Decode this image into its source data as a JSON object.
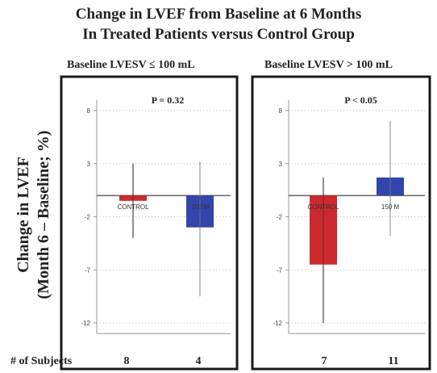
{
  "title_line1": "Change in LVEF from Baseline at 6 Months",
  "title_line2": "In Treated Patients versus Control Group",
  "y_title_line1": "Change in LVEF",
  "y_title_line2": "(Month 6 – Baseline; %)",
  "subjects_label": "# of Subjects",
  "colors": {
    "control": "#cc2a30",
    "treated": "#3344aa",
    "frame": "#1a1a1a",
    "errorbar": "#222222"
  },
  "chart_data": [
    {
      "type": "bar",
      "title": "Baseline LVESV ≤ 100 mL",
      "annotation": "P = 0.32",
      "categories": [
        "CONTROL",
        "150 M"
      ],
      "values": [
        -0.5,
        -3.0
      ],
      "error_low": [
        -4.0,
        -9.5
      ],
      "error_high": [
        3.0,
        3.2
      ],
      "ylim": [
        -13,
        10
      ],
      "yticks": [
        8,
        3,
        -2,
        -7,
        -12
      ],
      "n_subjects": [
        8,
        4
      ]
    },
    {
      "type": "bar",
      "title": "Baseline LVESV > 100 mL",
      "annotation": "P < 0.05",
      "categories": [
        "CONTROL",
        "150 M"
      ],
      "values": [
        -6.5,
        1.7
      ],
      "error_low": [
        -12.0,
        -3.8
      ],
      "error_high": [
        1.7,
        7.0
      ],
      "ylim": [
        -13,
        10
      ],
      "yticks": [
        8,
        3,
        -2,
        -7,
        -12
      ],
      "n_subjects": [
        7,
        11
      ]
    }
  ]
}
